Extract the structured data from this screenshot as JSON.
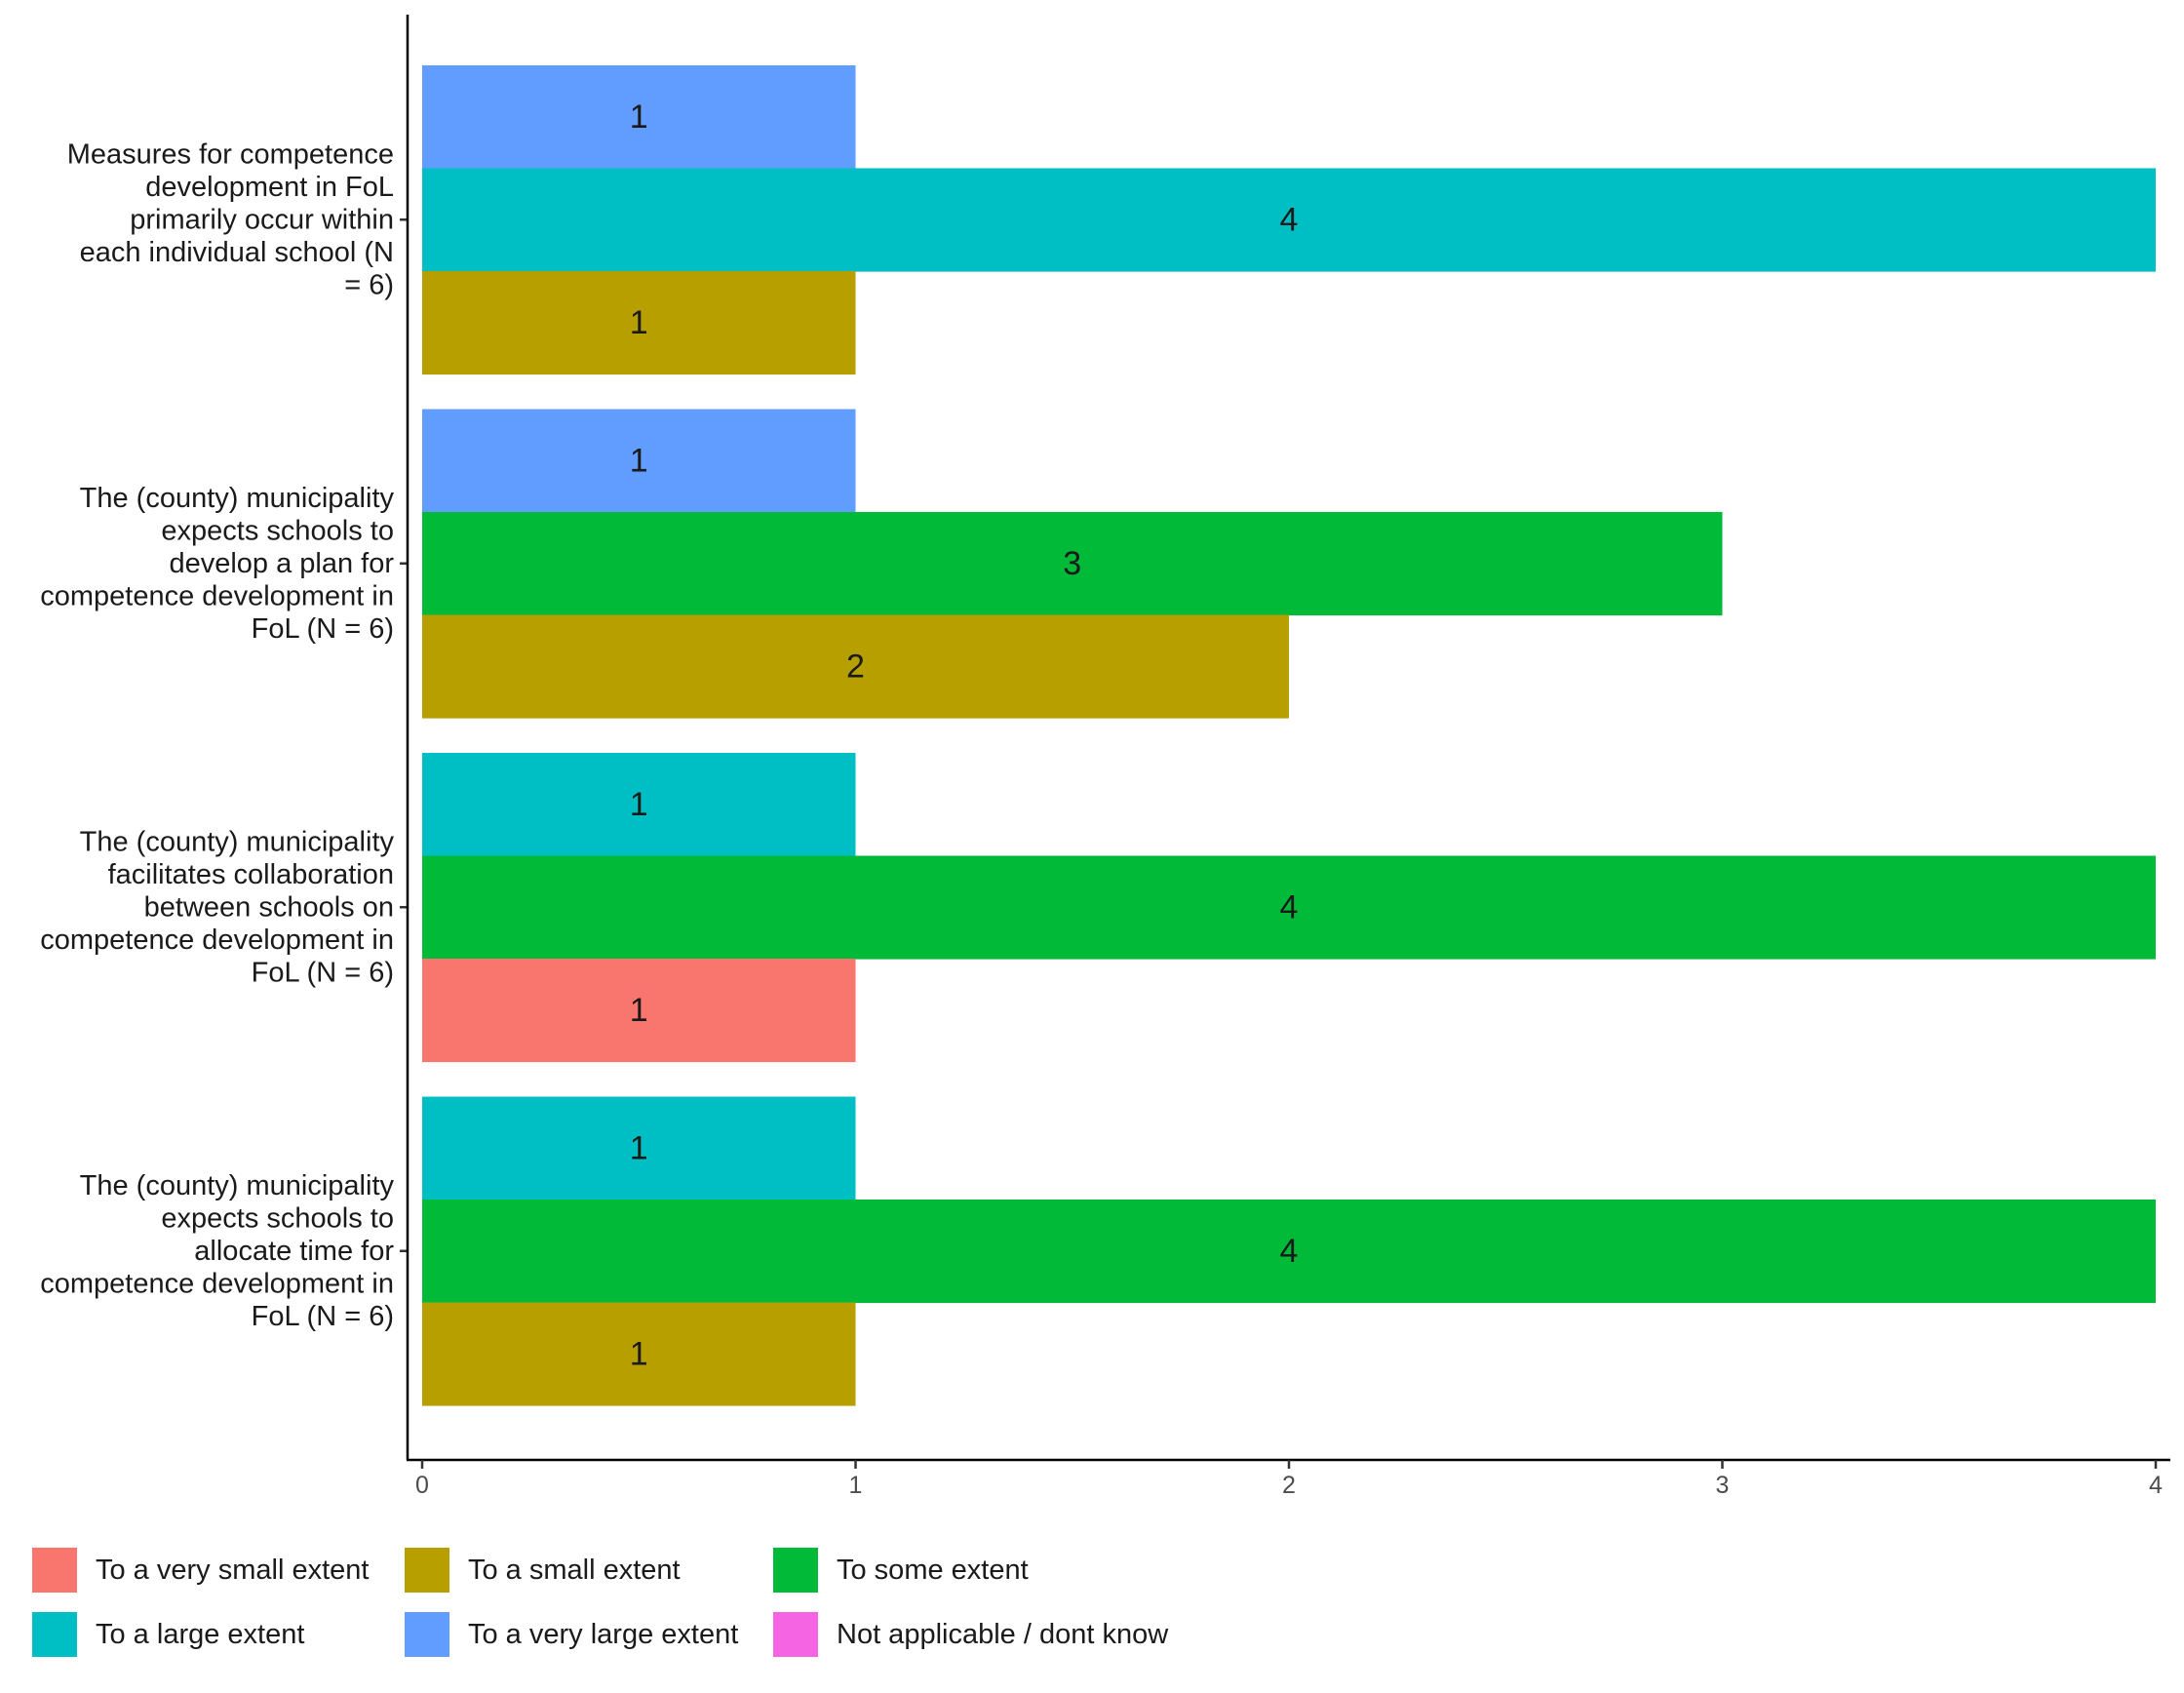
{
  "chart_data": {
    "type": "bar",
    "orientation": "horizontal",
    "title": "",
    "xlabel": "",
    "ylabel": "",
    "xlim": [
      0,
      4
    ],
    "x_ticks": [
      "0",
      "1",
      "2",
      "3",
      "4"
    ],
    "grid": false,
    "legend_position": "bottom",
    "levels": [
      {
        "name": "To a very small extent",
        "color": "#F8766D"
      },
      {
        "name": "To a small extent",
        "color": "#B79F00"
      },
      {
        "name": "To some extent",
        "color": "#00BA38"
      },
      {
        "name": "To a large extent",
        "color": "#00BFC4"
      },
      {
        "name": "To a very large extent",
        "color": "#619CFF"
      },
      {
        "name": "Not applicable / dont know",
        "color": "#F564E3"
      }
    ],
    "categories": [
      {
        "label_lines": [
          "Measures for competence",
          "development in FoL",
          "primarily occur within",
          "each individual school (N",
          "= 6)"
        ],
        "bars": [
          {
            "level": "To a very large extent",
            "value": 1,
            "label": "1"
          },
          {
            "level": "To a large extent",
            "value": 4,
            "label": "4"
          },
          {
            "level": "To a small extent",
            "value": 1,
            "label": "1"
          }
        ]
      },
      {
        "label_lines": [
          "The (county) municipality",
          "expects schools to",
          "develop a plan for",
          "competence development in",
          "FoL (N = 6)"
        ],
        "bars": [
          {
            "level": "To a very large extent",
            "value": 1,
            "label": "1"
          },
          {
            "level": "To some extent",
            "value": 3,
            "label": "3"
          },
          {
            "level": "To a small extent",
            "value": 2,
            "label": "2"
          }
        ]
      },
      {
        "label_lines": [
          "The (county) municipality",
          "facilitates collaboration",
          "between schools on",
          "competence development in",
          "FoL (N = 6)"
        ],
        "bars": [
          {
            "level": "To a large extent",
            "value": 1,
            "label": "1"
          },
          {
            "level": "To some extent",
            "value": 4,
            "label": "4"
          },
          {
            "level": "To a very small extent",
            "value": 1,
            "label": "1"
          }
        ]
      },
      {
        "label_lines": [
          "The (county) municipality",
          "expects schools to",
          "allocate time for",
          "competence development in",
          "FoL (N = 6)"
        ],
        "bars": [
          {
            "level": "To a large extent",
            "value": 1,
            "label": "1"
          },
          {
            "level": "To some extent",
            "value": 4,
            "label": "4"
          },
          {
            "level": "To a small extent",
            "value": 1,
            "label": "1"
          }
        ]
      }
    ],
    "legend_rows": [
      [
        "To a very small extent",
        "To a small extent",
        "To some extent"
      ],
      [
        "To a large extent",
        "To a very large extent",
        "Not applicable / dont know"
      ]
    ]
  }
}
